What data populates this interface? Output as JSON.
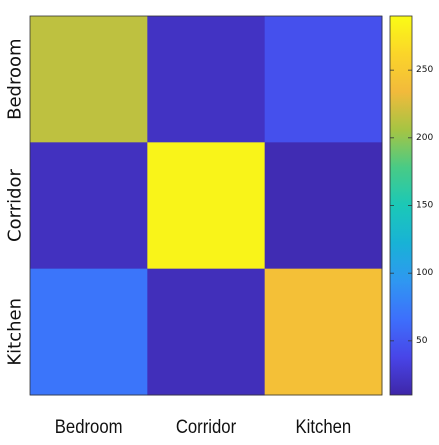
{
  "chart_data": {
    "type": "heatmap",
    "title": "",
    "xlabel": "",
    "ylabel": "",
    "x_categories": [
      "Bedroom",
      "Corridor",
      "Kitchen"
    ],
    "y_categories": [
      "Bedroom",
      "Corridor",
      "Kitchen"
    ],
    "values": [
      [
        215,
        22,
        45
      ],
      [
        20,
        285,
        15
      ],
      [
        70,
        18,
        240
      ]
    ],
    "colorbar": {
      "range": [
        10,
        290
      ],
      "ticks": [
        50,
        100,
        150,
        200,
        250
      ]
    },
    "colormap": [
      "#3e26a8",
      "#4845e8",
      "#3d6ffc",
      "#2f97f1",
      "#18b2d6",
      "#1bc8b7",
      "#48cb86",
      "#a6c443",
      "#f2ba3b",
      "#fbd529",
      "#f9fb15"
    ],
    "grid": false
  }
}
